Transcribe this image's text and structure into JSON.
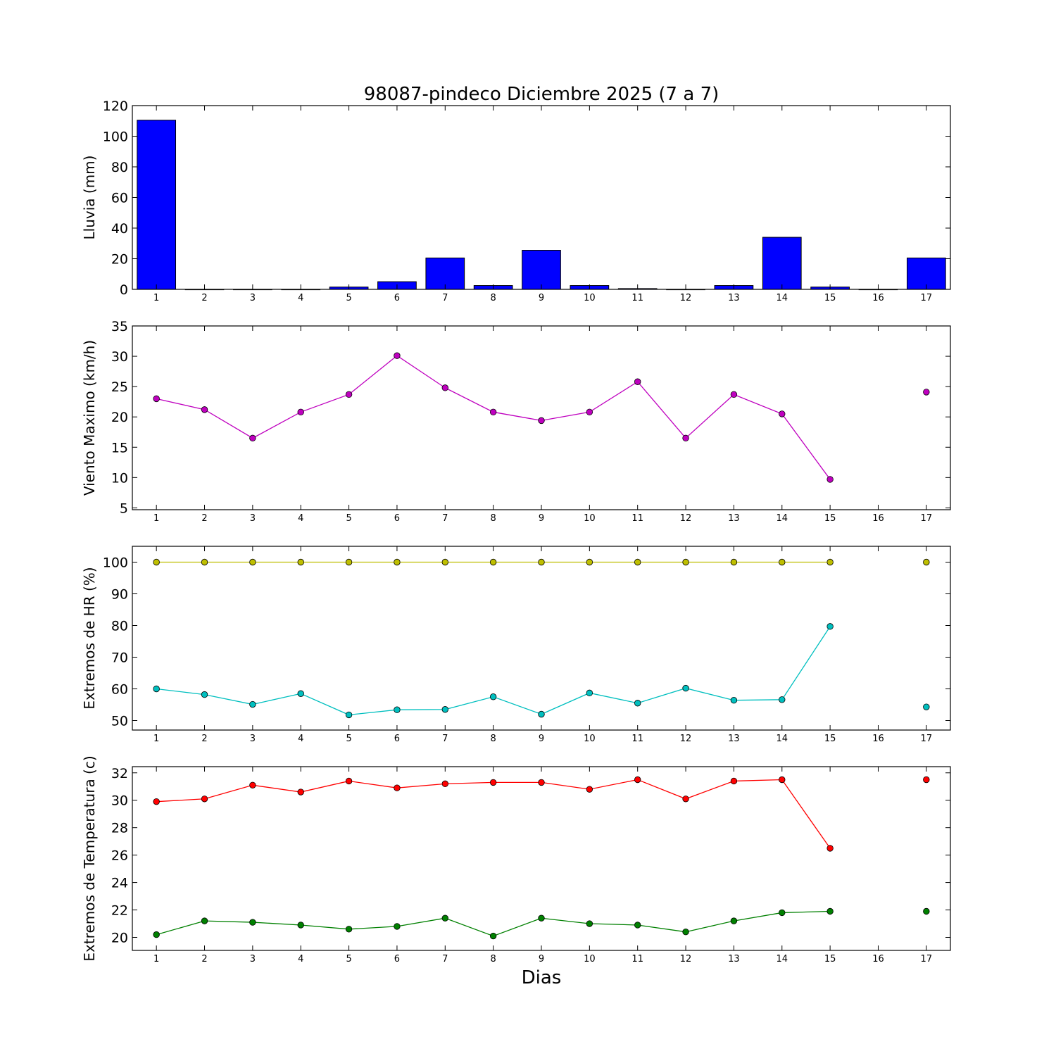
{
  "figure": {
    "title": "98087-pindeco Diciembre 2025  (7 a 7)",
    "xlabel": "Dias"
  },
  "chart_data": [
    {
      "type": "bar",
      "id": "lluvia",
      "ylabel": "Lluvia (mm)",
      "xlim": [
        0.5,
        17.5
      ],
      "ylim": [
        0,
        120
      ],
      "yticks": [
        0,
        20,
        40,
        60,
        80,
        100,
        120
      ],
      "categories": [
        "1",
        "2",
        "3",
        "4",
        "5",
        "6",
        "7",
        "8",
        "9",
        "10",
        "11",
        "12",
        "13",
        "14",
        "15",
        "16",
        "17"
      ],
      "values": [
        110.5,
        0,
        0,
        0,
        1.5,
        5,
        20.5,
        2.5,
        25.5,
        2.5,
        0.5,
        0,
        2.5,
        34,
        1.5,
        0,
        20.5
      ],
      "color": "#0000ff",
      "grid": false
    },
    {
      "type": "line",
      "id": "viento",
      "ylabel": "Viento Maximo (km/h)",
      "xlim": [
        0.5,
        17.5
      ],
      "ylim": [
        4.7,
        35
      ],
      "yticks": [
        5,
        10,
        15,
        20,
        25,
        30,
        35
      ],
      "x": [
        1,
        2,
        3,
        4,
        5,
        6,
        7,
        8,
        9,
        10,
        11,
        12,
        13,
        14,
        15,
        16,
        17
      ],
      "series": [
        {
          "values": [
            23,
            21.2,
            16.5,
            20.8,
            23.7,
            30.1,
            24.8,
            20.8,
            19.4,
            20.8,
            25.8,
            16.5,
            23.7,
            20.5,
            9.7,
            null,
            24.1
          ],
          "color": "#bf00bf"
        }
      ],
      "grid": false
    },
    {
      "type": "line",
      "id": "humedad",
      "ylabel": "Extremos de HR (%)",
      "xlim": [
        0.5,
        17.5
      ],
      "ylim": [
        47,
        105
      ],
      "yticks": [
        50,
        60,
        70,
        80,
        90,
        100
      ],
      "x": [
        1,
        2,
        3,
        4,
        5,
        6,
        7,
        8,
        9,
        10,
        11,
        12,
        13,
        14,
        15,
        16,
        17
      ],
      "series": [
        {
          "values": [
            100,
            100,
            100,
            100,
            100,
            100,
            100,
            100,
            100,
            100,
            100,
            100,
            100,
            100,
            100,
            null,
            100
          ],
          "color": "#bfbf00"
        },
        {
          "values": [
            60,
            58.2,
            55.1,
            58.5,
            51.8,
            53.4,
            53.5,
            57.5,
            52,
            58.7,
            55.5,
            60.2,
            56.4,
            56.6,
            79.7,
            null,
            54.3
          ],
          "color": "#00bfbf"
        }
      ],
      "grid": false
    },
    {
      "type": "line",
      "id": "temperatura",
      "ylabel": "Extremos de Temperatura (c)",
      "xlim": [
        0.5,
        17.5
      ],
      "ylim": [
        19.05,
        32.45
      ],
      "yticks": [
        20,
        22,
        24,
        26,
        28,
        30,
        32
      ],
      "x": [
        1,
        2,
        3,
        4,
        5,
        6,
        7,
        8,
        9,
        10,
        11,
        12,
        13,
        14,
        15,
        16,
        17
      ],
      "series": [
        {
          "values": [
            29.9,
            30.1,
            31.1,
            30.6,
            31.4,
            30.9,
            31.2,
            31.3,
            31.3,
            30.8,
            31.5,
            30.1,
            31.4,
            31.5,
            26.5,
            null,
            31.5
          ],
          "color": "#ff0000"
        },
        {
          "values": [
            20.2,
            21.2,
            21.1,
            20.9,
            20.6,
            20.8,
            21.4,
            20.1,
            21.4,
            21,
            20.9,
            20.4,
            21.2,
            21.8,
            21.9,
            null,
            21.9
          ],
          "color": "#008000"
        }
      ],
      "grid": false
    }
  ]
}
